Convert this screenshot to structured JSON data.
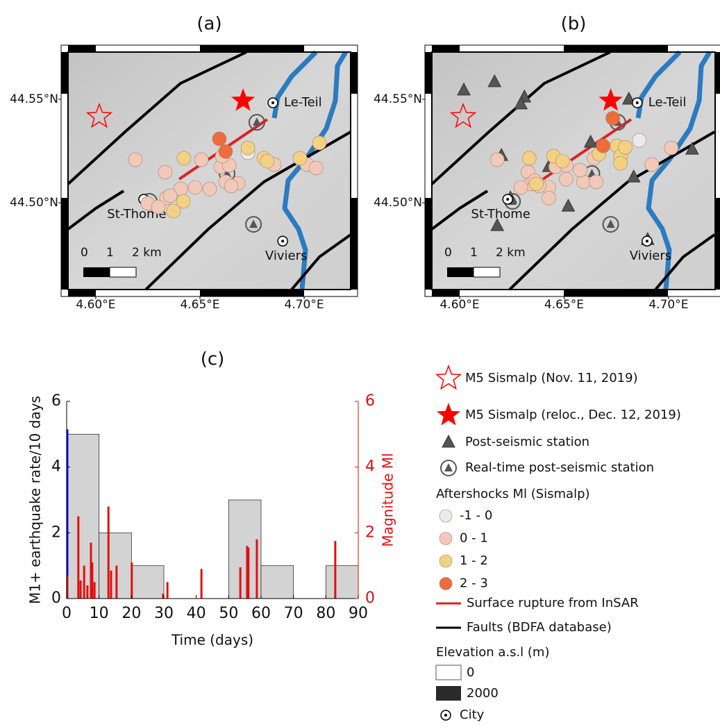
{
  "chart_data": [
    {
      "type": "map",
      "title": "(a)",
      "xlim": [
        4.5867,
        4.7223
      ],
      "ylim": [
        44.4581,
        44.5728
      ],
      "xticks": [
        {
          "value": 4.6,
          "label": "4.60°E"
        },
        {
          "value": 4.65,
          "label": "4.65°E"
        },
        {
          "value": 4.7,
          "label": "4.70°E"
        }
      ],
      "yticks": [
        {
          "value": 44.5,
          "label": "44.50°N"
        },
        {
          "value": 44.55,
          "label": "44.55°N"
        }
      ],
      "scale_labels": [
        0,
        1,
        "2 km"
      ],
      "series": [
        {
          "name": "-1 - 0",
          "color": "#ebebeb",
          "x": [
            4.673
          ],
          "values": [
            44.5242
          ]
        },
        {
          "name": "0 - 1",
          "color": "#f2c9b8",
          "x": [
            4.619,
            4.6333,
            4.6507,
            4.66,
            4.664,
            4.6623,
            4.6683,
            4.665,
            4.6547,
            4.6477,
            4.6407,
            4.634,
            4.625,
            4.63,
            4.7013,
            4.7057,
            4.6857,
            4.6357,
            4.6607
          ],
          "values": [
            44.5208,
            44.5148,
            44.5208,
            44.5174,
            44.5181,
            44.5101,
            44.5094,
            44.5081,
            44.5067,
            44.5074,
            44.5067,
            44.5023,
            44.4997,
            44.498,
            44.5185,
            44.5168,
            44.5185,
            44.5034,
            44.5225
          ]
        },
        {
          "name": "1 - 2",
          "color": "#f3d182",
          "x": [
            4.6423,
            4.673,
            4.6807,
            4.6823,
            4.698,
            4.7073,
            4.6373,
            4.642
          ],
          "values": [
            44.5215,
            44.5265,
            44.5215,
            44.5201,
            44.5215,
            44.5289,
            44.496,
            44.5007
          ]
        },
        {
          "name": "2 - 3",
          "color": "#ee6b3a",
          "x": [
            4.6593,
            4.6623
          ],
          "values": [
            44.5309,
            44.5248
          ]
        }
      ],
      "markers": [
        {
          "name": "M5 Sismalp (Nov. 11, 2019)",
          "symbol": "open-star",
          "color": "#ff0000",
          "x": [
            4.6017
          ],
          "values": [
            44.5416
          ]
        },
        {
          "name": "M5 Sismalp (reloc., Dec. 12, 2019)",
          "symbol": "star",
          "color": "#ff0000",
          "x": [
            4.6707
          ],
          "values": [
            44.5493
          ]
        },
        {
          "name": "Real-time post-seismic station",
          "symbol": "ring",
          "color": "#555555",
          "x": [
            4.6773,
            4.6257,
            4.6757,
            4.663
          ],
          "values": [
            44.5389,
            44.5007,
            44.4896,
            44.5141
          ]
        },
        {
          "name": "City",
          "symbol": "city",
          "color": "#000000",
          "x": [
            4.685,
            4.623,
            4.6897
          ],
          "values": [
            44.5483,
            44.5017,
            44.4815
          ],
          "labels": [
            "Le-Teil",
            "St-Thome",
            "Viviers"
          ]
        }
      ]
    },
    {
      "type": "map",
      "title": "(b)",
      "xlim": [
        4.5867,
        4.7223
      ],
      "ylim": [
        44.4581,
        44.5728
      ],
      "xticks": [
        {
          "value": 4.6,
          "label": "4.60°E"
        },
        {
          "value": 4.65,
          "label": "4.65°E"
        },
        {
          "value": 4.7,
          "label": "4.70°E"
        }
      ],
      "yticks": [
        {
          "value": 44.5,
          "label": "44.50°N"
        },
        {
          "value": 44.55,
          "label": "44.55°N"
        }
      ],
      "scale_labels": [
        0,
        1,
        "2 km"
      ],
      "series": [
        {
          "name": "-1 - 0",
          "color": "#ebebeb",
          "x": [
            4.686
          ],
          "values": [
            44.5302
          ]
        },
        {
          "name": "0 - 1",
          "color": "#f2c9b8",
          "x": [
            4.618,
            4.6327,
            4.6427,
            4.638,
            4.634,
            4.646,
            4.651,
            4.6593,
            4.6653,
            4.6577,
            4.6643,
            4.6427,
            4.651,
            4.692,
            4.7013,
            4.6293,
            4.636
          ],
          "values": [
            44.5208,
            44.5148,
            44.5074,
            44.5081,
            44.5091,
            44.5174,
            44.5114,
            44.5101,
            44.5101,
            44.5158,
            44.5215,
            44.5023,
            44.5181,
            44.5185,
            44.5265,
            44.5074,
            44.5107
          ]
        },
        {
          "name": "1 - 2",
          "color": "#f3d182",
          "x": [
            4.6333,
            4.645,
            4.6367,
            4.6753,
            4.677,
            4.677,
            4.6793,
            4.6667,
            4.6493
          ],
          "values": [
            44.5215,
            44.5225,
            44.5091,
            44.5275,
            44.5225,
            44.5191,
            44.5268,
            44.5235,
            44.5201
          ]
        },
        {
          "name": "2 - 3",
          "color": "#ee6b3a",
          "x": [
            4.6733,
            4.6687
          ],
          "values": [
            44.5409,
            44.5275
          ]
        }
      ],
      "markers": [
        {
          "name": "M5 Sismalp (Nov. 11, 2019)",
          "symbol": "open-star",
          "color": "#ff0000",
          "x": [
            4.6017
          ],
          "values": [
            44.5416
          ]
        },
        {
          "name": "M5 Sismalp (reloc., Dec. 12, 2019)",
          "symbol": "star",
          "color": "#ff0000",
          "x": [
            4.6723
          ],
          "values": [
            44.5493
          ]
        },
        {
          "name": "Post-seismic station",
          "symbol": "triangle",
          "color": "#555555",
          "x": [
            4.602,
            4.6167,
            4.631,
            4.6293,
            4.62,
            4.652,
            4.6833,
            4.69,
            4.6243,
            4.618,
            4.7113,
            4.681,
            4.6427,
            4.6627
          ],
          "values": [
            44.5544,
            44.5584,
            44.551,
            44.5477,
            44.5228,
            44.4983,
            44.5124,
            44.4822,
            44.5023,
            44.4889,
            44.5258,
            44.55,
            44.5174,
            44.5292
          ]
        },
        {
          "name": "Real-time post-seismic station",
          "symbol": "ring",
          "color": "#555555",
          "x": [
            4.6757,
            4.6253,
            4.6723,
            4.6633
          ],
          "values": [
            44.5389,
            44.5007,
            44.4896,
            44.5141
          ]
        },
        {
          "name": "City",
          "symbol": "city",
          "color": "#000000",
          "x": [
            4.685,
            4.623,
            4.6897
          ],
          "values": [
            44.5483,
            44.5017,
            44.4815
          ],
          "labels": [
            "Le-Teil",
            "St-Thome",
            "Viviers"
          ]
        }
      ]
    },
    {
      "type": "histogram",
      "title": "(c)",
      "x_label": "Time (days)",
      "y_label": "M1+ earthquake rate/10 days",
      "y2_label": "Magnitude Ml",
      "bins": [
        0,
        10,
        20,
        30,
        40,
        50,
        60,
        70,
        80,
        90
      ],
      "values": [
        5,
        2,
        1,
        0,
        0,
        3,
        1,
        0,
        1
      ],
      "color": "#d3d3d3",
      "xlim": [
        0,
        90
      ],
      "xticks": [
        0,
        10,
        20,
        30,
        40,
        50,
        60,
        70,
        80,
        90
      ],
      "ylim": [
        0,
        6
      ],
      "yticks": [
        0,
        2,
        4,
        6
      ],
      "y2lim": [
        0,
        6
      ],
      "y2ticks": [
        0,
        2,
        4,
        6
      ],
      "y2color": "#e01010",
      "series": [
        {
          "color": "#0000ff",
          "axis": "y2",
          "x": [
            0.2
          ],
          "values": [
            5.15
          ]
        },
        {
          "color": "#e01010",
          "axis": "y2",
          "x": [
            0.2,
            3.6,
            4.3,
            5.4,
            6.4,
            7.5,
            7.9,
            8.6,
            12.9,
            13.7,
            15.4,
            20.1,
            29.8,
            31.1,
            41.6,
            53.6,
            55.7,
            56.1,
            58.7,
            82.9
          ],
          "values": [
            0.7,
            2.5,
            0.55,
            1.0,
            0.4,
            1.7,
            1.1,
            0.5,
            2.8,
            0.85,
            1.0,
            1.1,
            0.15,
            0.5,
            0.9,
            0.95,
            1.6,
            1.55,
            1.8,
            1.75
          ]
        }
      ]
    }
  ],
  "legend": {
    "rupture": "Surface rupture from InSAR",
    "faults": "Faults (BDFA database)",
    "aftershocks_title": "Aftershocks Ml (Sismalp)",
    "elevation_title": "Elevation a.s.l (m)",
    "elevation_labels": [
      0,
      2000
    ]
  }
}
